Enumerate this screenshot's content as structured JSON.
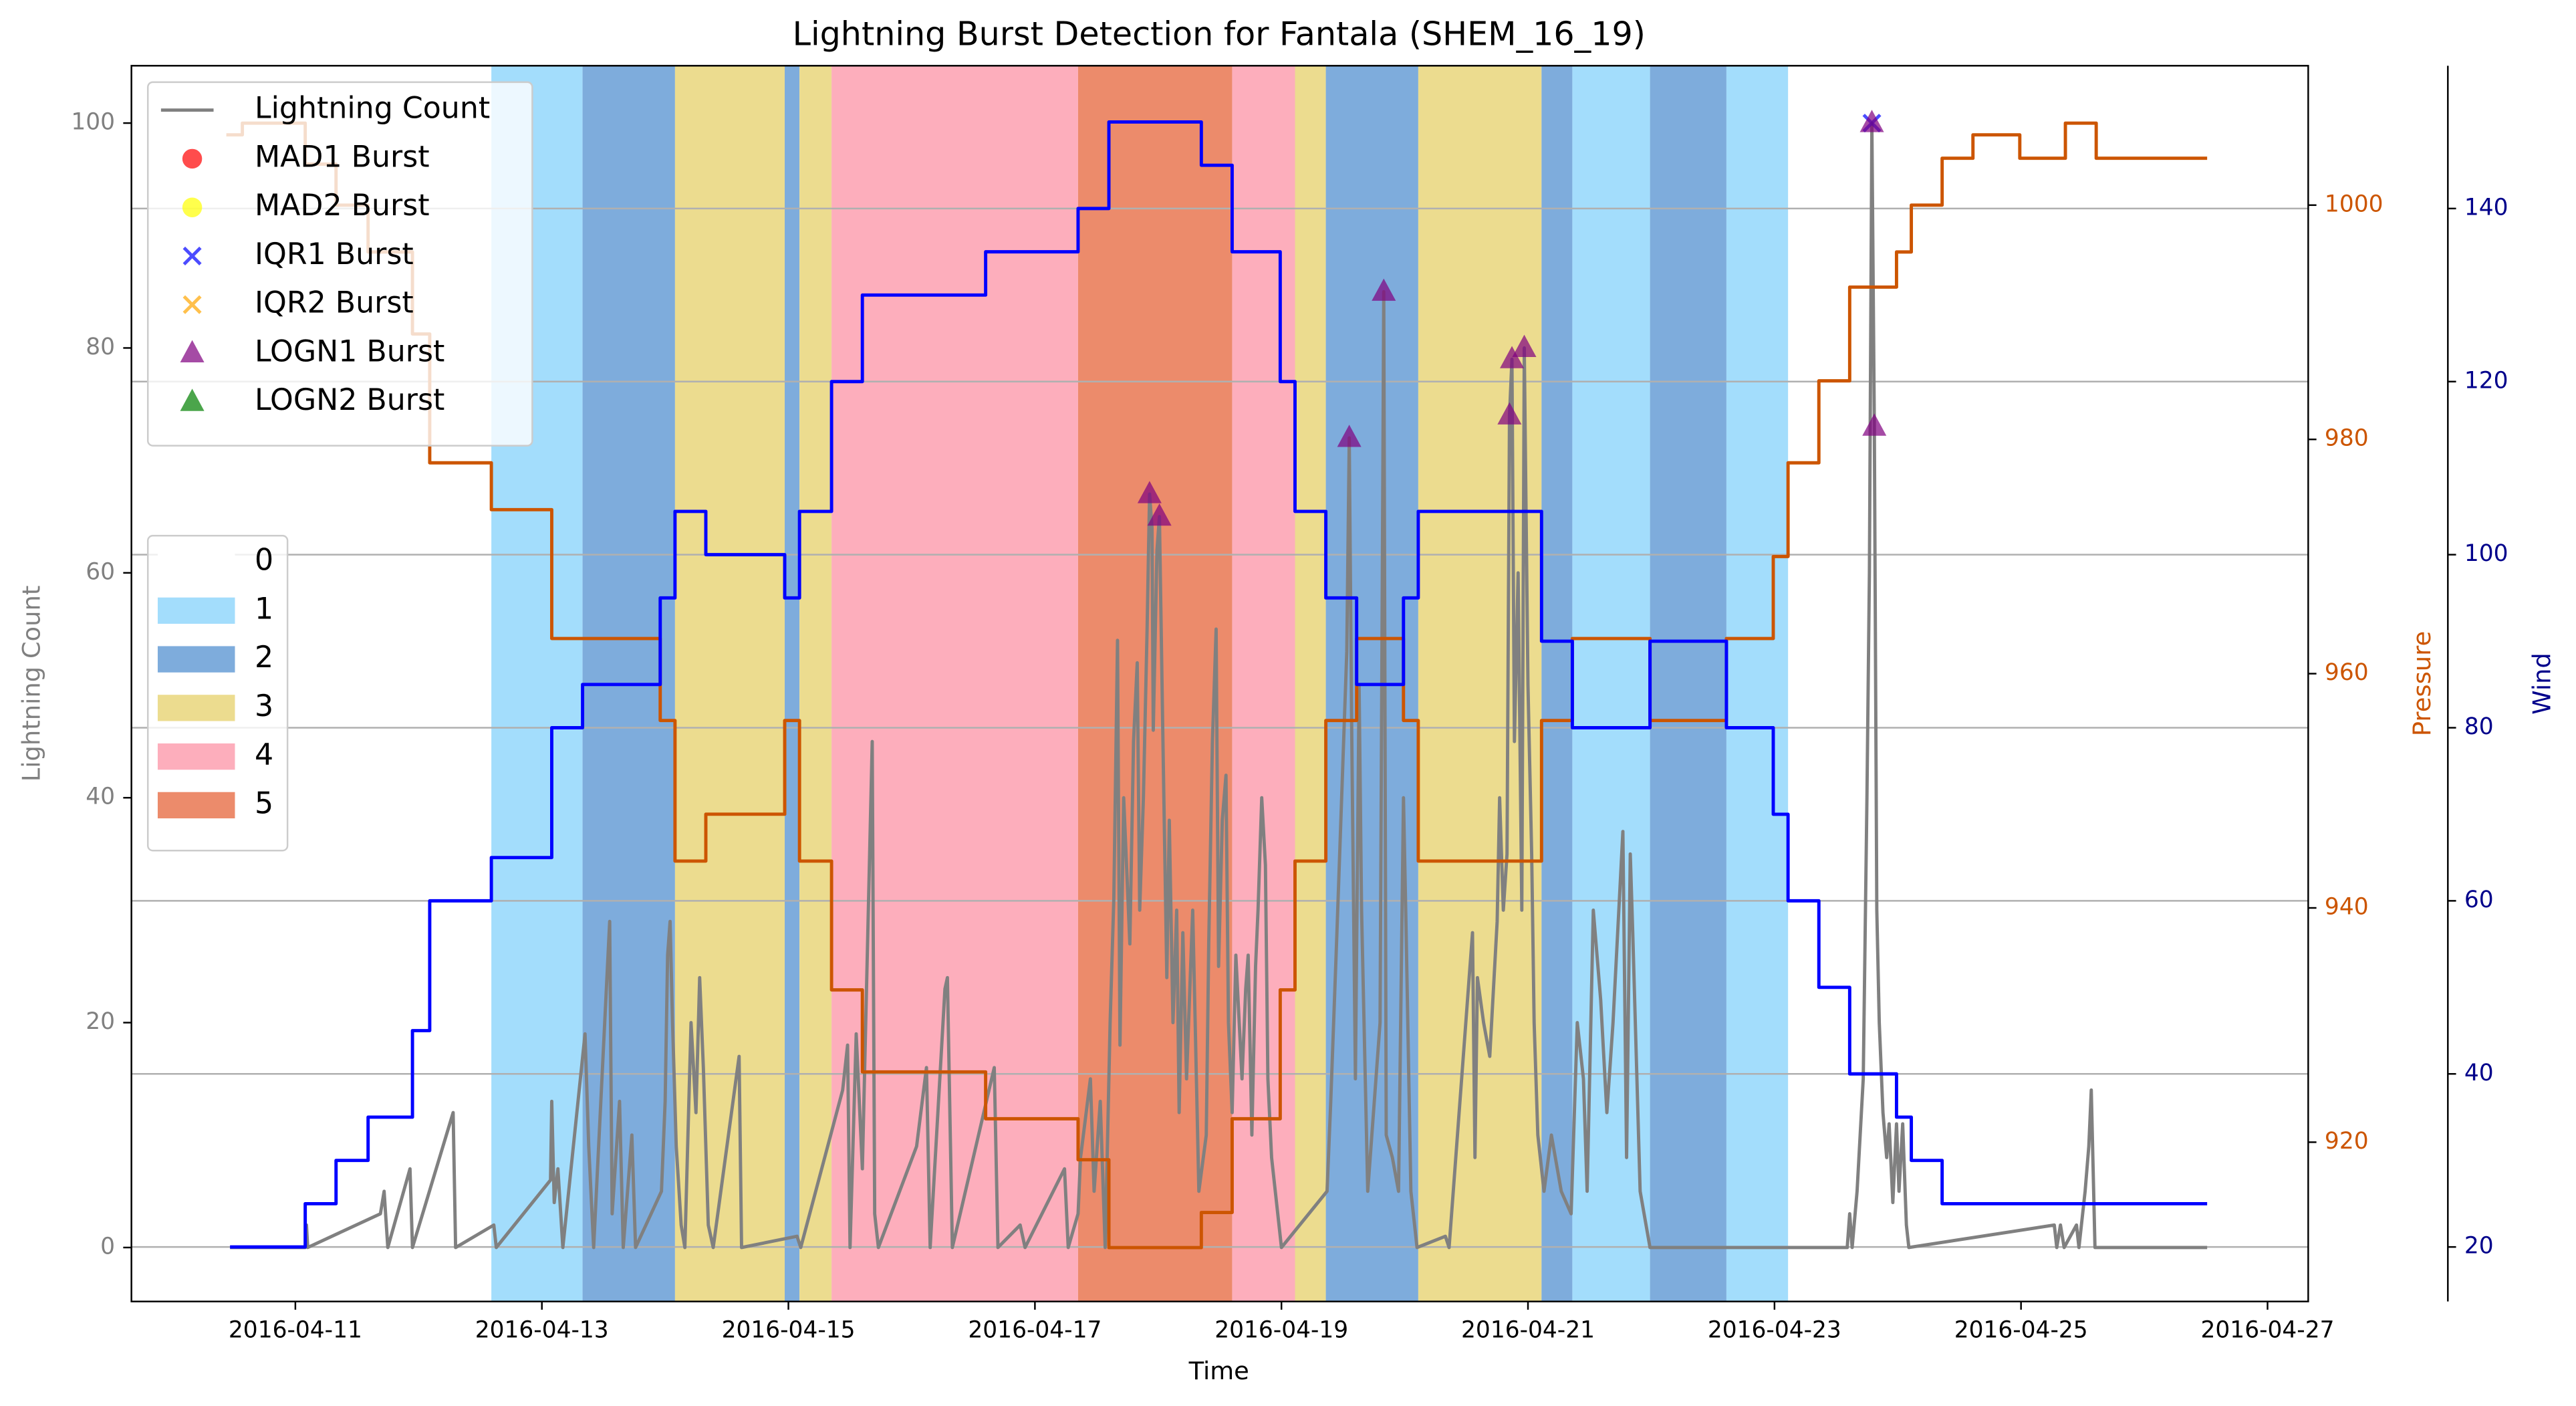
{
  "chart_data": {
    "type": "line",
    "title": "Lightning Burst Detection for Fantala (SHEM_16_19)",
    "xlabel": "Time",
    "ylabel": "Lightning Count",
    "y2label": "Pressure",
    "y3label": "Wind",
    "xlim": [
      16900.67,
      16918.33
    ],
    "xticks": [
      {
        "value": 16902,
        "label": "2016-04-11"
      },
      {
        "value": 16904,
        "label": "2016-04-13"
      },
      {
        "value": 16906,
        "label": "2016-04-15"
      },
      {
        "value": 16908,
        "label": "2016-04-17"
      },
      {
        "value": 16910,
        "label": "2016-04-19"
      },
      {
        "value": 16912,
        "label": "2016-04-21"
      },
      {
        "value": 16914,
        "label": "2016-04-23"
      },
      {
        "value": 16916,
        "label": "2016-04-25"
      },
      {
        "value": 16918,
        "label": "2016-04-27"
      }
    ],
    "ylim": [
      -4.8,
      105.1
    ],
    "yticks": [
      0,
      20,
      40,
      60,
      80,
      100
    ],
    "y2lim": [
      906.4,
      1011.9
    ],
    "y2ticks": [
      920,
      940,
      960,
      980,
      1000
    ],
    "y3lim": [
      13.7,
      156.5
    ],
    "y3ticks": [
      20,
      40,
      60,
      80,
      100,
      120,
      140
    ],
    "grid": "y3",
    "legend": "upper left",
    "band_legend": "center left",
    "bands": {
      "categories": [
        "0",
        "1",
        "2",
        "3",
        "4",
        "5"
      ],
      "colors": [
        "#ffffff",
        "#a3ddfc",
        "#7eacdc",
        "#ecdc8f",
        "#fdaebc",
        "#ec8b6b"
      ],
      "edges": [
        16903.59,
        16904.33,
        16905.08,
        16905.97,
        16906.09,
        16906.35,
        16908.35,
        16909.6,
        16910.11,
        16910.36,
        16911.11,
        16912.11,
        16912.36,
        16912.99,
        16913.61,
        16914.11
      ],
      "values": [
        1,
        2,
        3,
        2,
        3,
        4,
        5,
        4,
        3,
        2,
        3,
        2,
        1,
        2,
        1
      ]
    },
    "series": [
      {
        "name": "Lightning Count",
        "type": "line",
        "color": "#808080",
        "x": [
          16901.47,
          16902.08,
          16902.09,
          16902.1,
          16902.69,
          16902.72,
          16902.75,
          16902.93,
          16902.95,
          16903.28,
          16903.3,
          16903.61,
          16903.63,
          16904.07,
          16904.08,
          16904.1,
          16904.13,
          16904.17,
          16904.35,
          16904.38,
          16904.42,
          16904.55,
          16904.57,
          16904.63,
          16904.66,
          16904.73,
          16904.76,
          16904.97,
          16905.0,
          16905.02,
          16905.04,
          16905.06,
          16905.09,
          16905.13,
          16905.16,
          16905.21,
          16905.25,
          16905.28,
          16905.31,
          16905.35,
          16905.39,
          16905.6,
          16905.62,
          16906.07,
          16906.1,
          16906.44,
          16906.48,
          16906.5,
          16906.55,
          16906.6,
          16906.68,
          16906.7,
          16906.73,
          16907.04,
          16907.12,
          16907.15,
          16907.27,
          16907.29,
          16907.33,
          16907.67,
          16907.7,
          16907.88,
          16907.92,
          16908.24,
          16908.27,
          16908.35,
          16908.37,
          16908.45,
          16908.48,
          16908.53,
          16908.57,
          16908.61,
          16908.64,
          16908.67,
          16908.69,
          16908.72,
          16908.77,
          16908.8,
          16908.83,
          16908.85,
          16908.88,
          16908.91,
          16908.93,
          16908.95,
          16908.96,
          16908.99,
          16909.01,
          16909.04,
          16909.07,
          16909.09,
          16909.12,
          16909.15,
          16909.17,
          16909.2,
          16909.23,
          16909.28,
          16909.33,
          16909.39,
          16909.41,
          16909.44,
          16909.47,
          16909.49,
          16909.52,
          16909.55,
          16909.57,
          16909.6,
          16909.63,
          16909.68,
          16909.71,
          16909.73,
          16909.76,
          16909.79,
          16909.81,
          16909.84,
          16909.87,
          16909.89,
          16909.92,
          16909.97,
          16910.0,
          16910.37,
          16910.4,
          16910.45,
          16910.53,
          16910.55,
          16910.57,
          16910.6,
          16910.63,
          16910.65,
          16910.7,
          16910.8,
          16910.83,
          16910.85,
          16910.9,
          16910.95,
          16910.99,
          16911.01,
          16911.05,
          16911.1,
          16911.33,
          16911.36,
          16911.55,
          16911.57,
          16911.59,
          16911.64,
          16911.69,
          16911.75,
          16911.77,
          16911.8,
          16911.83,
          16911.85,
          16911.87,
          16911.89,
          16911.92,
          16911.95,
          16911.97,
          16912.0,
          16912.03,
          16912.05,
          16912.08,
          16912.13,
          16912.19,
          16912.27,
          16912.35,
          16912.4,
          16912.45,
          16912.48,
          16912.53,
          16912.59,
          16912.64,
          16912.69,
          16912.77,
          16912.8,
          16912.83,
          16912.85,
          16912.91,
          16912.99,
          16914.59,
          16914.61,
          16914.63,
          16914.67,
          16914.72,
          16914.75,
          16914.77,
          16914.79,
          16914.81,
          16914.83,
          16914.85,
          16914.88,
          16914.91,
          16914.93,
          16914.96,
          16914.99,
          16915.01,
          16915.04,
          16915.07,
          16915.09,
          16916.27,
          16916.29,
          16916.32,
          16916.35,
          16916.45,
          16916.47,
          16916.52,
          16916.55,
          16916.57,
          16916.6,
          16917.51
        ],
        "values": [
          0,
          0,
          2,
          0,
          3,
          5,
          0,
          7,
          0,
          12,
          0,
          2,
          0,
          6,
          13,
          4,
          7,
          0,
          19,
          9,
          0,
          29,
          3,
          13,
          0,
          10,
          0,
          5,
          13,
          26,
          29,
          20,
          9,
          2,
          0,
          20,
          12,
          24,
          16,
          2,
          0,
          17,
          0,
          1,
          0,
          14,
          18,
          0,
          19,
          7,
          45,
          3,
          0,
          9,
          16,
          0,
          23,
          24,
          0,
          16,
          0,
          2,
          0,
          7,
          0,
          3,
          8,
          15,
          5,
          13,
          0,
          20,
          31,
          54,
          18,
          40,
          27,
          45,
          52,
          30,
          40,
          55,
          67,
          64,
          46,
          62,
          65,
          44,
          24,
          38,
          20,
          30,
          12,
          28,
          15,
          30,
          5,
          10,
          27,
          45,
          55,
          25,
          38,
          42,
          20,
          12,
          26,
          15,
          23,
          26,
          10,
          25,
          30,
          40,
          34,
          15,
          8,
          3,
          0,
          5,
          13,
          28,
          53,
          72,
          46,
          15,
          50,
          30,
          5,
          20,
          85,
          10,
          8,
          5,
          40,
          29,
          5,
          0,
          1,
          0,
          28,
          8,
          24,
          20,
          17,
          29,
          40,
          30,
          35,
          74,
          79,
          45,
          60,
          30,
          80,
          50,
          35,
          20,
          10,
          5,
          10,
          5,
          3,
          20,
          15,
          5,
          30,
          22,
          12,
          20,
          37,
          8,
          35,
          28,
          5,
          0,
          0,
          3,
          0,
          5,
          15,
          40,
          60,
          100,
          73,
          30,
          20,
          12,
          8,
          11,
          4,
          11,
          5,
          11,
          2,
          0,
          2,
          0,
          2,
          0,
          2,
          0,
          5,
          9,
          14,
          0,
          0
        ]
      },
      {
        "name": "MAD1 Burst",
        "type": "scatter",
        "marker": "o",
        "color": "#ff0000",
        "alpha": 0.7,
        "x": [],
        "values": []
      },
      {
        "name": "MAD2 Burst",
        "type": "scatter",
        "marker": "o",
        "color": "#ffff00",
        "alpha": 0.7,
        "x": [],
        "values": []
      },
      {
        "name": "IQR1 Burst",
        "type": "scatter",
        "marker": "x",
        "color": "#0000ff",
        "alpha": 0.7,
        "x": [
          16914.79
        ],
        "values": [
          100
        ]
      },
      {
        "name": "IQR2 Burst",
        "type": "scatter",
        "marker": "x",
        "color": "#ffa500",
        "alpha": 0.7,
        "x": [],
        "values": []
      },
      {
        "name": "LOGN1 Burst",
        "type": "scatter",
        "marker": "^",
        "color": "#800080",
        "alpha": 0.7,
        "x": [
          16908.93,
          16909.01,
          16910.55,
          16910.83,
          16911.85,
          16911.87,
          16911.97,
          16914.79,
          16914.81
        ],
        "values": [
          67,
          65,
          72,
          85,
          74,
          79,
          80,
          100,
          73
        ]
      },
      {
        "name": "LOGN2 Burst",
        "type": "scatter",
        "marker": "^",
        "color": "#008000",
        "alpha": 0.7,
        "x": [],
        "values": []
      },
      {
        "type": "line",
        "axis": "y2",
        "drawstyle": "steps-post",
        "color": "#cc5500",
        "x": [
          16901.44,
          16901.57,
          16902.08,
          16902.33,
          16902.59,
          16902.95,
          16903.09,
          16903.59,
          16904.08,
          16904.96,
          16905.08,
          16905.33,
          16905.97,
          16906.09,
          16906.35,
          16906.6,
          16907.6,
          16908.35,
          16908.6,
          16909.35,
          16909.6,
          16909.99,
          16910.11,
          16910.36,
          16910.61,
          16910.99,
          16911.11,
          16912.11,
          16912.36,
          16912.99,
          16913.61,
          16913.99,
          16914.11,
          16914.36,
          16914.61,
          16914.99,
          16915.11,
          16915.36,
          16915.61,
          16915.99,
          16916.36,
          16916.61,
          16917.51
        ],
        "values": [
          1006,
          1007,
          1003.5,
          1000,
          996,
          989,
          978,
          974,
          963,
          956,
          944,
          948,
          956,
          944,
          933,
          926,
          922,
          918.5,
          911,
          914,
          922,
          933,
          944,
          956,
          963,
          956,
          944,
          956,
          963,
          956,
          963,
          970,
          978,
          985,
          993,
          996,
          1000,
          1004,
          1006,
          1004,
          1007,
          1004,
          1004
        ]
      },
      {
        "type": "line",
        "axis": "y3",
        "drawstyle": "steps-post",
        "color": "#0000ff",
        "x": [
          16901.47,
          16902.08,
          16902.33,
          16902.59,
          16902.95,
          16903.09,
          16903.59,
          16904.08,
          16904.33,
          16904.96,
          16905.08,
          16905.33,
          16905.97,
          16906.09,
          16906.35,
          16906.6,
          16907.6,
          16908.35,
          16908.6,
          16909.35,
          16909.6,
          16909.99,
          16910.11,
          16910.36,
          16910.61,
          16910.99,
          16911.11,
          16912.11,
          16912.36,
          16912.99,
          16913.61,
          16913.99,
          16914.11,
          16914.36,
          16914.61,
          16914.99,
          16915.11,
          16915.36,
          16917.51
        ],
        "values": [
          20,
          25,
          30,
          35,
          45,
          60,
          65,
          80,
          85,
          95,
          105,
          100,
          95,
          105,
          120,
          130,
          135,
          140,
          150,
          145,
          135,
          120,
          105,
          95,
          85,
          95,
          105,
          90,
          80,
          90,
          80,
          70,
          60,
          50,
          40,
          35,
          30,
          25,
          25
        ]
      }
    ]
  }
}
